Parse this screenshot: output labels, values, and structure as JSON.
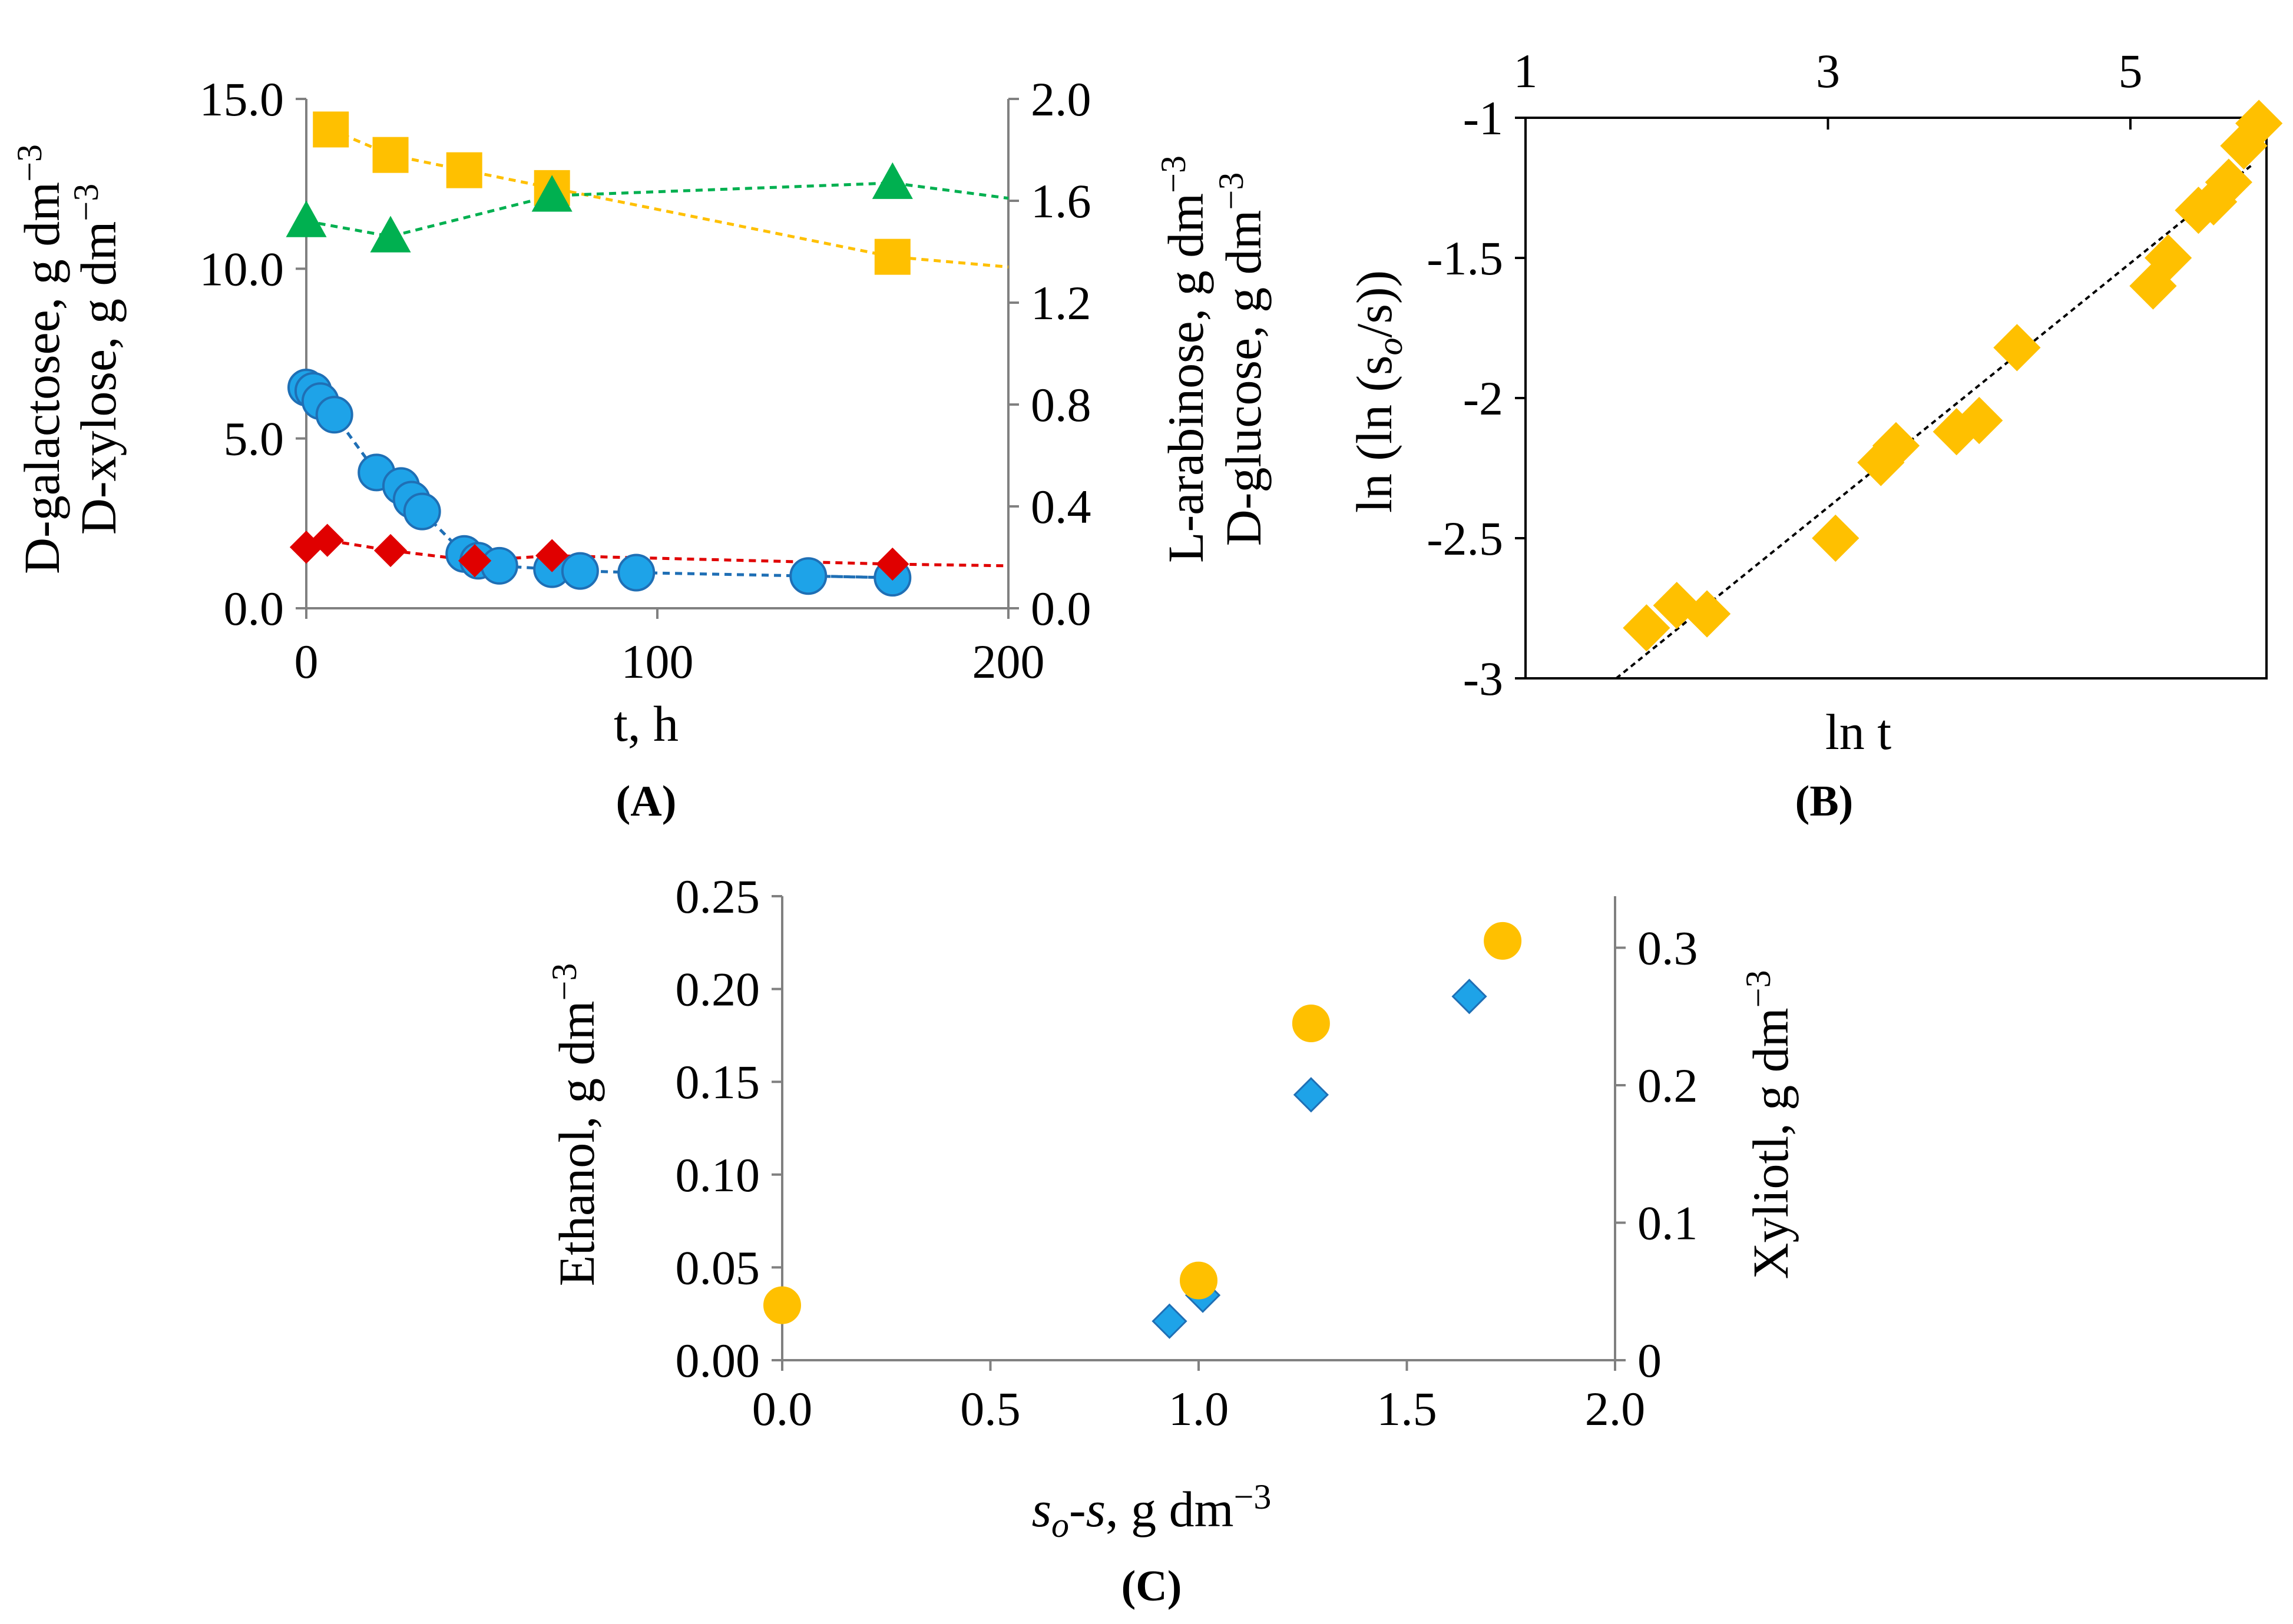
{
  "chart_data": [
    {
      "panel": "A",
      "type": "scatter",
      "panel_label": "(A)",
      "xlabel": "t, h",
      "ylabel_left_1": "D-galactosee, g dm",
      "ylabel_left_2": "D-xylose, g dm",
      "ylabel_right_1": "L-arabinose, g dm",
      "ylabel_right_2": "D-glucose, g dm",
      "units_exponent": "−3",
      "xlim": [
        0,
        200
      ],
      "ylim_left": [
        0,
        15
      ],
      "ylim_right": [
        0,
        2
      ],
      "x_ticks": [
        "0",
        "100",
        "200"
      ],
      "x_tick_values": [
        0,
        100,
        200
      ],
      "y_left_ticks": [
        "0.0",
        "5.0",
        "10.0",
        "15.0"
      ],
      "y_left_tick_values": [
        0,
        5,
        10,
        15
      ],
      "y_right_ticks": [
        "0.0",
        "0.4",
        "0.8",
        "1.2",
        "1.6",
        "2.0"
      ],
      "y_right_tick_values": [
        0,
        0.4,
        0.8,
        1.2,
        1.6,
        2.0
      ],
      "series": [
        {
          "name": "D-xylose",
          "marker": "circle",
          "color": "#1ea3e8",
          "axis": "left",
          "x": [
            0,
            2,
            4,
            8,
            20,
            27,
            30,
            33,
            45,
            49,
            55,
            70,
            78,
            94,
            143,
            167
          ],
          "y": [
            6.5,
            6.4,
            6.1,
            5.7,
            4.0,
            3.6,
            3.2,
            2.85,
            1.6,
            1.4,
            1.25,
            1.15,
            1.1,
            1.05,
            0.95,
            0.9
          ]
        },
        {
          "name": "D-galactose",
          "marker": "diamond",
          "color": "#e00000",
          "axis": "left",
          "x": [
            0,
            6,
            24,
            48,
            70,
            167
          ],
          "y": [
            1.8,
            2.0,
            1.7,
            1.4,
            1.55,
            1.3
          ]
        },
        {
          "name": "D-glucose",
          "marker": "square",
          "color": "#ffc000",
          "axis": "right",
          "x": [
            7,
            24,
            45,
            70,
            167
          ],
          "y": [
            1.88,
            1.78,
            1.72,
            1.65,
            1.38
          ]
        },
        {
          "name": "L-arabinose",
          "marker": "triangle",
          "color": "#00b050",
          "axis": "right",
          "x": [
            0,
            24,
            70,
            167
          ],
          "y": [
            1.52,
            1.46,
            1.62,
            1.67
          ]
        }
      ],
      "trend_ends": {
        "D-xylose": [
          144,
          0.95
        ],
        "D-galactose": [
          200,
          1.25
        ],
        "D-glucose": [
          200,
          1.34
        ],
        "L-arabinose": [
          200,
          1.61
        ]
      }
    },
    {
      "panel": "B",
      "type": "scatter",
      "panel_label": "(B)",
      "xlabel": "ln t",
      "ylabel": "ln (ln (s",
      "ylabel_sub": "o",
      "ylabel_tail": "/s))",
      "xlim": [
        1,
        5.9
      ],
      "ylim": [
        -3,
        -1
      ],
      "x_ticks": [
        "1",
        "3",
        "5"
      ],
      "x_tick_values": [
        1,
        3,
        5
      ],
      "y_ticks": [
        "-1",
        "-1.5",
        "-2",
        "-2.5",
        "-3"
      ],
      "y_tick_values": [
        -1,
        -1.5,
        -2,
        -2.5,
        -3
      ],
      "series": [
        {
          "name": "ln(ln(so/s))",
          "marker": "diamond",
          "color": "#ffc000",
          "x": [
            1.8,
            2.0,
            2.2,
            3.05,
            3.35,
            3.45,
            3.85,
            4.0,
            4.25,
            5.15,
            5.25,
            5.45,
            5.55,
            5.65,
            5.75,
            5.85
          ],
          "y": [
            -2.82,
            -2.74,
            -2.77,
            -2.5,
            -2.23,
            -2.17,
            -2.12,
            -2.08,
            -1.82,
            -1.6,
            -1.5,
            -1.33,
            -1.3,
            -1.23,
            -1.1,
            -1.02
          ]
        }
      ],
      "fit_line": {
        "x1": 1.6,
        "y1": -3.0,
        "x2": 5.8,
        "y2": -1.17
      }
    },
    {
      "panel": "C",
      "type": "scatter",
      "panel_label": "(C)",
      "xlabel_pre": "s",
      "xlabel_sub": "o",
      "xlabel_mid": "-s",
      "xlabel_tail": ", g dm",
      "ylabel_left": "Ethanol, g dm",
      "ylabel_right": "Xyliotl, g dm",
      "units_exponent": "−3",
      "xlim": [
        0,
        2
      ],
      "ylim_left": [
        0,
        0.25
      ],
      "ylim_right": [
        0,
        0.3375
      ],
      "x_ticks": [
        "0.0",
        "0.5",
        "1.0",
        "1.5",
        "2.0"
      ],
      "x_tick_values": [
        0,
        0.5,
        1.0,
        1.5,
        2.0
      ],
      "y_left_ticks": [
        "0.00",
        "0.05",
        "0.10",
        "0.15",
        "0.20",
        "0.25"
      ],
      "y_left_tick_values": [
        0,
        0.05,
        0.1,
        0.15,
        0.2,
        0.25
      ],
      "y_right_ticks": [
        "0",
        "0.1",
        "0.2",
        "0.3"
      ],
      "y_right_tick_values": [
        0,
        0.1,
        0.2,
        0.3
      ],
      "series": [
        {
          "name": "Ethanol",
          "marker": "diamond",
          "color": "#1ea3e8",
          "axis": "left",
          "x": [
            0.93,
            1.01,
            1.27,
            1.65
          ],
          "y": [
            0.021,
            0.035,
            0.143,
            0.196
          ]
        },
        {
          "name": "Xylitol",
          "marker": "circle",
          "color": "#ffc000",
          "axis": "right",
          "x": [
            0.0,
            1.0,
            1.27,
            1.73
          ],
          "y": [
            0.04,
            0.058,
            0.245,
            0.305
          ]
        }
      ]
    }
  ]
}
